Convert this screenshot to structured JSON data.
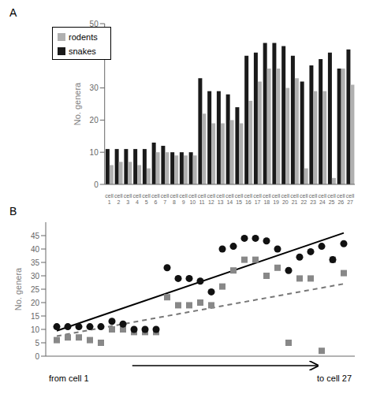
{
  "chart_data": [
    {
      "type": "bar",
      "title": "A",
      "ylabel": "No. genera",
      "categories": [
        "cell\n1",
        "cell\n2",
        "cell\n3",
        "cell\n4",
        "cell\n5",
        "cell\n6",
        "cell\n7",
        "cell\n8",
        "cell\n9",
        "cell\n10",
        "cell\n11",
        "cell\n12",
        "cell\n13",
        "cell\n14",
        "cell\n15",
        "cell\n16",
        "cell\n17",
        "cell\n18",
        "cell\n19",
        "cell\n20",
        "cell\n21",
        "cell\n22",
        "cell\n23",
        "cell\n24",
        "cell\n25",
        "cell\n26",
        "cell\n27"
      ],
      "series": [
        {
          "name": "snakes",
          "color": "#1a1a1a",
          "values": [
            11,
            11,
            11,
            11,
            11,
            13,
            12,
            10,
            10,
            10,
            33,
            29,
            29,
            28,
            24,
            40,
            41,
            44,
            44,
            43,
            40,
            32,
            37,
            39,
            41,
            36,
            42
          ]
        },
        {
          "name": "rodents",
          "color": "#b0b0b0",
          "values": [
            6,
            7,
            7,
            6,
            5,
            10,
            10,
            9,
            9,
            9,
            22,
            19,
            19,
            20,
            19,
            26,
            32,
            36,
            36,
            30,
            33,
            5,
            29,
            29,
            2,
            36,
            31
          ]
        }
      ],
      "ylim": [
        0,
        50
      ],
      "yticks": [
        0,
        10,
        20,
        30,
        40,
        50
      ],
      "legend": "upper left"
    },
    {
      "type": "scatter",
      "title": "B",
      "ylabel": "No. genera",
      "annotations": [
        "from cell 1",
        "to cell 27"
      ],
      "xlim": [
        0,
        28
      ],
      "ylim": [
        0,
        50
      ],
      "yticks": [
        0,
        5,
        10,
        15,
        20,
        25,
        30,
        35,
        40,
        45
      ],
      "tick_labels": "y",
      "series": [
        {
          "type": "scatter",
          "marker": "square",
          "color": "#888888",
          "x": [
            1,
            2,
            3,
            4,
            5,
            6,
            7,
            8,
            9,
            10,
            11,
            12,
            13,
            14,
            15,
            16,
            17,
            18,
            19,
            20,
            21,
            22,
            23,
            24,
            25,
            26,
            27
          ],
          "values": [
            6,
            7,
            7,
            6,
            5,
            10,
            10,
            9,
            9,
            9,
            22,
            19,
            19,
            20,
            19,
            26,
            32,
            36,
            36,
            30,
            33,
            5,
            29,
            29,
            2,
            36,
            31
          ]
        },
        {
          "type": "scatter",
          "marker": "circle",
          "color": "#111111",
          "x": [
            1,
            2,
            3,
            4,
            5,
            6,
            7,
            8,
            9,
            10,
            11,
            12,
            13,
            14,
            15,
            16,
            17,
            18,
            19,
            20,
            21,
            22,
            23,
            24,
            25,
            26,
            27
          ],
          "values": [
            11,
            11,
            11,
            11,
            11,
            13,
            12,
            10,
            10,
            10,
            33,
            29,
            29,
            28,
            24,
            40,
            41,
            44,
            44,
            43,
            40,
            32,
            37,
            39,
            41,
            36,
            42
          ]
        },
        {
          "type": "line",
          "line_style": "solid",
          "color": "black",
          "x": [
            1,
            27
          ],
          "values": [
            9.5,
            46.0
          ]
        },
        {
          "type": "line",
          "line_style": "dashed",
          "color": "#777777",
          "x": [
            1,
            27
          ],
          "values": [
            7.5,
            27.0
          ]
        }
      ]
    }
  ]
}
